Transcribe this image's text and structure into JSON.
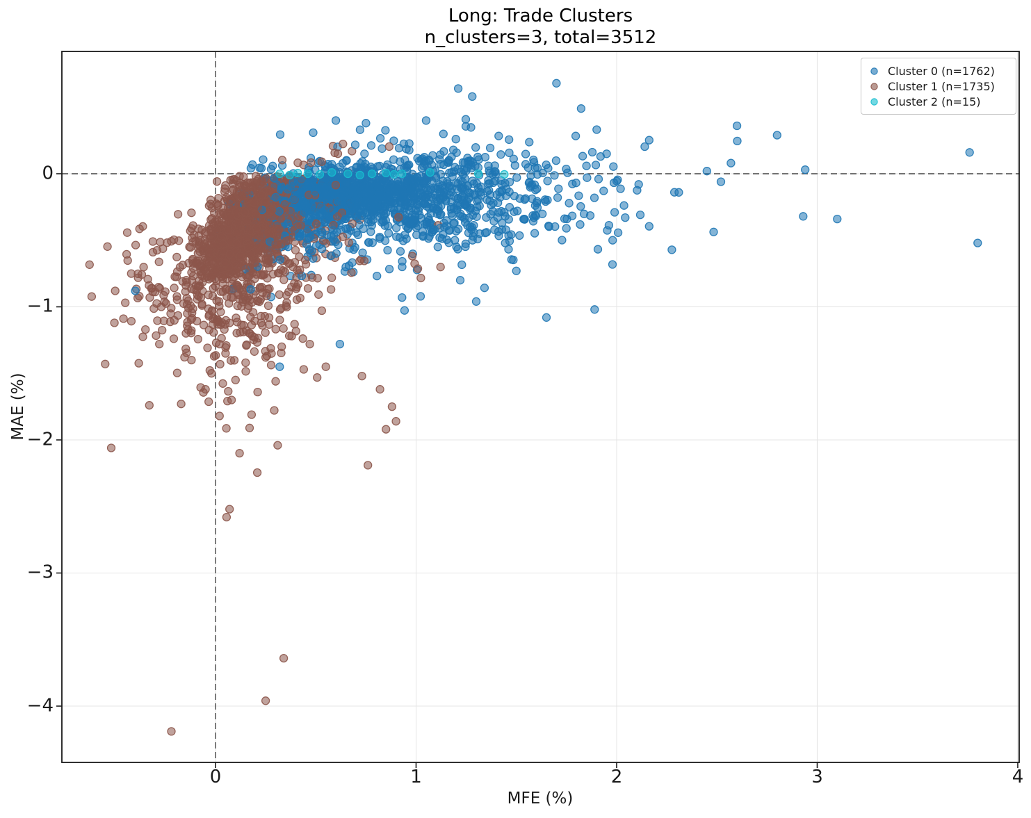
{
  "figure": {
    "title_line1": "Long: Trade Clusters",
    "title_line2": "n_clusters=3, total=3512"
  },
  "axes": {
    "xlabel": "MFE (%)",
    "ylabel": "MAE (%)",
    "x_ticks": [
      {
        "value": 0,
        "label": "0"
      },
      {
        "value": 1,
        "label": "1"
      },
      {
        "value": 2,
        "label": "2"
      },
      {
        "value": 3,
        "label": "3"
      },
      {
        "value": 4,
        "label": "4"
      }
    ],
    "y_ticks": [
      {
        "value": 0,
        "label": "0"
      },
      {
        "value": -1,
        "label": "−1"
      },
      {
        "value": -2,
        "label": "−2"
      },
      {
        "value": -3,
        "label": "−3"
      },
      {
        "value": -4,
        "label": "−4"
      }
    ]
  },
  "legend": {
    "items": [
      {
        "label": "Cluster 0 (n=1762)",
        "color": "#1f77b4"
      },
      {
        "label": "Cluster 1 (n=1735)",
        "color": "#8c564b"
      },
      {
        "label": "Cluster 2 (n=15)",
        "color": "#17becf"
      }
    ]
  },
  "chart_data": {
    "type": "scatter",
    "title": "Long: Trade Clusters\nn_clusters=3, total=3512",
    "xlabel": "MFE (%)",
    "ylabel": "MAE (%)",
    "xlim": [
      -0.766,
      4.007
    ],
    "ylim": [
      -4.423,
      0.919
    ],
    "grid": true,
    "legend_position": "upper right",
    "reference_lines": {
      "x": 0,
      "y": 0,
      "style": "dashed",
      "color": "#444444"
    },
    "marker": {
      "radius_px": 5.5,
      "fill_opacity": 0.55,
      "stroke_opacity": 0.9,
      "stroke_width": 1.3
    },
    "clusters": [
      {
        "name": "Cluster 0",
        "n": 1762,
        "color": "#1f77b4",
        "description": "dense band just below MAE=0 for MFE 0.3-1.3, sparse tail to MFE 4",
        "points_explicit": [
          [
            1.91,
            -0.04
          ],
          [
            1.92,
            0.13
          ],
          [
            1.95,
            0.15
          ],
          [
            1.98,
            -0.5
          ],
          [
            1.99,
            -0.29
          ],
          [
            2.11,
            -0.08
          ],
          [
            2.31,
            -0.14
          ],
          [
            2.45,
            0.02
          ],
          [
            2.52,
            -0.06
          ],
          [
            2.57,
            0.08
          ],
          [
            2.6,
            0.36
          ],
          [
            2.8,
            0.29
          ],
          [
            2.93,
            -0.32
          ],
          [
            2.94,
            0.03
          ],
          [
            3.1,
            -0.34
          ],
          [
            3.76,
            0.16
          ],
          [
            3.8,
            -0.52
          ],
          [
            1.89,
            -1.02
          ],
          [
            1.65,
            -1.08
          ],
          [
            -0.4,
            -0.88
          ],
          [
            0.32,
            -1.45
          ],
          [
            0.62,
            -1.28
          ],
          [
            0.93,
            -0.93
          ],
          [
            1.22,
            -0.8
          ],
          [
            1.3,
            -0.96
          ],
          [
            1.5,
            -0.73
          ],
          [
            0.6,
            0.4
          ],
          [
            0.75,
            0.38
          ],
          [
            1.05,
            0.4
          ],
          [
            1.21,
            0.64
          ],
          [
            1.28,
            0.58
          ],
          [
            1.7,
            0.68
          ]
        ],
        "gen": [
          {
            "n": 520,
            "cx": 0.62,
            "cy": -0.13,
            "sx": 0.17,
            "sy": 0.09,
            "rho": 0.2
          },
          {
            "n": 400,
            "cx": 0.92,
            "cy": -0.16,
            "sx": 0.24,
            "sy": 0.13
          },
          {
            "n": 300,
            "cx": 0.45,
            "cy": -0.28,
            "sx": 0.17,
            "sy": 0.16,
            "rho": 0.5,
            "ymax": -0.02
          },
          {
            "n": 240,
            "cx": 1.25,
            "cy": -0.18,
            "sx": 0.3,
            "sy": 0.2
          },
          {
            "n": 150,
            "cx": 0.75,
            "cy": -0.42,
            "sx": 0.3,
            "sy": 0.22,
            "rho": 0.3,
            "ymax": -0.05
          },
          {
            "n": 80,
            "cx": 1.6,
            "cy": -0.25,
            "sx": 0.38,
            "sy": 0.28
          },
          {
            "n": 40,
            "cx": 0.9,
            "cy": 0.1,
            "sx": 0.3,
            "sy": 0.12,
            "ymin": 0.0,
            "ymax": 0.5
          }
        ]
      },
      {
        "name": "Cluster 1",
        "n": 1735,
        "color": "#8c564b",
        "description": "dense blob MFE 0-0.5 / MAE -0.05 to -1.2 with deep MAE outlier tail",
        "points_explicit": [
          [
            -0.22,
            -4.19
          ],
          [
            0.25,
            -3.96
          ],
          [
            0.34,
            -3.64
          ],
          [
            0.055,
            -2.58
          ],
          [
            0.07,
            -2.52
          ],
          [
            0.12,
            -2.1
          ],
          [
            0.31,
            -2.04
          ],
          [
            0.76,
            -2.19
          ],
          [
            0.85,
            -1.92
          ],
          [
            0.9,
            -1.86
          ],
          [
            0.88,
            -1.75
          ],
          [
            -0.52,
            -2.06
          ],
          [
            -0.55,
            -1.43
          ],
          [
            -0.33,
            -1.74
          ],
          [
            0.02,
            -1.82
          ],
          [
            0.18,
            -1.81
          ],
          [
            0.17,
            -1.91
          ],
          [
            -0.05,
            -1.62
          ],
          [
            0.08,
            -1.7
          ],
          [
            0.21,
            -1.64
          ],
          [
            0.3,
            -1.56
          ],
          [
            -0.12,
            -1.4
          ],
          [
            -0.28,
            -1.28
          ],
          [
            -0.45,
            -0.97
          ],
          [
            -0.5,
            -0.88
          ],
          [
            -0.42,
            -0.75
          ],
          [
            -0.38,
            -0.92
          ],
          [
            0.73,
            -1.52
          ],
          [
            0.82,
            -1.62
          ],
          [
            0.55,
            -1.45
          ],
          [
            0.44,
            -1.47
          ],
          [
            0.05,
            -1.35
          ],
          [
            0.15,
            -1.42
          ],
          [
            -0.02,
            -1.5
          ],
          [
            0.1,
            -1.55
          ],
          [
            0.25,
            -1.38
          ],
          [
            0.33,
            -1.3
          ],
          [
            0.47,
            -1.28
          ],
          [
            0.02,
            -1.28
          ],
          [
            0.38,
            -1.22
          ]
        ],
        "gen": [
          {
            "n": 1150,
            "cx": 0.155,
            "cy": -0.4,
            "sx": 0.115,
            "sy": 0.2,
            "rho": 0.55,
            "ymax": -0.015,
            "xmin": -0.45
          },
          {
            "n": 310,
            "cx": 0.28,
            "cy": -0.52,
            "sx": 0.2,
            "sy": 0.33,
            "rho": 0.35,
            "ymax": -0.03
          },
          {
            "n": 140,
            "cx": 0.1,
            "cy": -1.05,
            "sx": 0.2,
            "sy": 0.33,
            "ymax": -0.55,
            "xmin": -0.55
          },
          {
            "n": 75,
            "cx": -0.22,
            "cy": -0.85,
            "sx": 0.15,
            "sy": 0.28,
            "ymax": -0.35,
            "xmin": -0.63
          },
          {
            "n": 12,
            "cx": 0.55,
            "cy": 0.1,
            "sx": 0.16,
            "sy": 0.09,
            "ymin": -0.01,
            "ymax": 0.32
          },
          {
            "n": 8,
            "cx": 1.0,
            "cy": -0.55,
            "sx": 0.15,
            "sy": 0.25,
            "ymax": -0.2
          }
        ]
      },
      {
        "name": "Cluster 2",
        "n": 15,
        "color": "#17becf",
        "description": "15 points lying on the MAE=0 line between MFE 0.3 and 1.45",
        "points_explicit": [
          [
            0.32,
            0
          ],
          [
            0.37,
            -0.01
          ],
          [
            0.41,
            0.005
          ],
          [
            0.46,
            0
          ],
          [
            0.52,
            -0.005
          ],
          [
            0.58,
            0.01
          ],
          [
            0.66,
            0
          ],
          [
            0.72,
            -0.01
          ],
          [
            0.78,
            0
          ],
          [
            0.85,
            0.005
          ],
          [
            0.89,
            -0.005
          ],
          [
            0.93,
            0
          ],
          [
            1.07,
            0.01
          ],
          [
            1.31,
            0
          ],
          [
            1.44,
            -0.005
          ]
        ],
        "gen": []
      }
    ]
  }
}
